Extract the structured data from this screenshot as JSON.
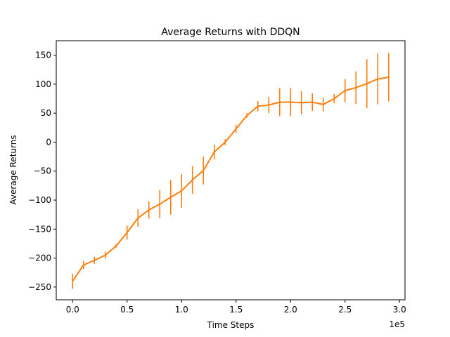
{
  "chart_data": {
    "type": "line",
    "title": "Average Returns with DDQN",
    "xlabel": "Time Steps",
    "ylabel": "Average Returns",
    "x_multiplier_label": "1e5",
    "xlim": [
      -15000,
      305000
    ],
    "ylim": [
      -272,
      175
    ],
    "xticks": [
      0,
      50000,
      100000,
      150000,
      200000,
      250000,
      300000
    ],
    "xtick_labels": [
      "0.0",
      "0.5",
      "1.0",
      "1.5",
      "2.0",
      "2.5",
      "3.0"
    ],
    "yticks": [
      -250,
      -200,
      -150,
      -100,
      -50,
      0,
      50,
      100,
      150
    ],
    "ytick_labels": [
      "−250",
      "−200",
      "−150",
      "−100",
      "−50",
      "0",
      "50",
      "100",
      "150"
    ],
    "grid": false,
    "series": [
      {
        "color": "#ff7f0e",
        "x": [
          0,
          10000,
          20000,
          30000,
          40000,
          50000,
          60000,
          70000,
          80000,
          90000,
          100000,
          110000,
          120000,
          130000,
          140000,
          150000,
          160000,
          170000,
          180000,
          190000,
          200000,
          210000,
          220000,
          230000,
          240000,
          250000,
          260000,
          270000,
          280000,
          290000
        ],
        "y": [
          -240,
          -212,
          -204,
          -195,
          -179,
          -156,
          -131,
          -117,
          -107,
          -95,
          -84,
          -65,
          -49,
          -17,
          0,
          23,
          46,
          62,
          64,
          69,
          69,
          68,
          69,
          65,
          75,
          89,
          94,
          101,
          109,
          112
        ],
        "yerr": [
          13,
          7,
          6,
          6,
          3,
          12,
          15,
          15,
          24,
          30,
          29,
          24,
          24,
          13,
          5,
          7,
          4,
          9,
          14,
          24,
          24,
          20,
          15,
          12,
          8,
          20,
          28,
          42,
          44,
          42
        ]
      }
    ]
  }
}
